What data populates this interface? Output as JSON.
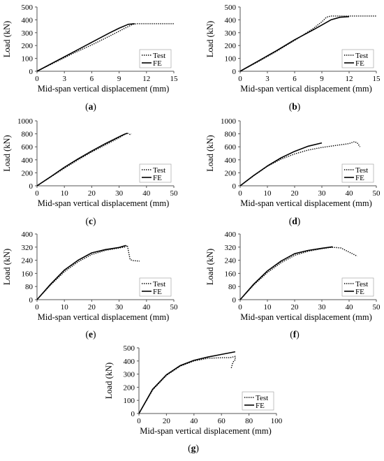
{
  "chart_data": [
    {
      "type": "line",
      "panel_label": "(a)",
      "xlabel": "Mid-span vertical displacement (mm)",
      "ylabel": "Load (kN)",
      "xlim": [
        0,
        15
      ],
      "ylim": [
        0,
        500
      ],
      "xticks": [
        0,
        3,
        6,
        9,
        12,
        15
      ],
      "yticks": [
        0,
        100,
        200,
        300,
        400,
        500
      ],
      "legend": "bottom-right",
      "series": [
        {
          "name": "Test",
          "style": "dotted",
          "x": [
            0,
            2,
            4,
            6,
            8,
            9.5,
            10.5,
            11,
            13,
            15
          ],
          "y": [
            0,
            70,
            140,
            205,
            275,
            330,
            365,
            370,
            370,
            370
          ]
        },
        {
          "name": "FE",
          "style": "solid",
          "x": [
            0,
            2,
            4,
            6,
            8,
            9,
            10,
            10.7
          ],
          "y": [
            0,
            75,
            150,
            225,
            300,
            335,
            365,
            370
          ]
        }
      ]
    },
    {
      "type": "line",
      "panel_label": "(b)",
      "xlabel": "Mid-span vertical displacement (mm)",
      "ylabel": "Load (kN)",
      "xlim": [
        0,
        15
      ],
      "ylim": [
        0,
        500
      ],
      "xticks": [
        0,
        3,
        6,
        9,
        12,
        15
      ],
      "yticks": [
        0,
        100,
        200,
        300,
        400,
        500
      ],
      "legend": "bottom-right",
      "series": [
        {
          "name": "Test",
          "style": "dotted",
          "x": [
            0,
            2,
            4,
            6,
            8,
            9,
            9.5,
            10,
            12,
            15
          ],
          "y": [
            0,
            75,
            155,
            240,
            330,
            385,
            420,
            430,
            430,
            430
          ]
        },
        {
          "name": "FE",
          "style": "solid",
          "x": [
            0,
            2,
            4,
            6,
            8,
            9,
            10,
            11,
            12
          ],
          "y": [
            0,
            80,
            160,
            245,
            320,
            360,
            400,
            420,
            425
          ]
        }
      ]
    },
    {
      "type": "line",
      "panel_label": "(c)",
      "xlabel": "Mid-span vertical displacement (mm)",
      "ylabel": "Load (kN)",
      "xlim": [
        0,
        50
      ],
      "ylim": [
        0,
        1000
      ],
      "xticks": [
        0,
        10,
        20,
        30,
        40,
        50
      ],
      "yticks": [
        0,
        200,
        400,
        600,
        800,
        1000
      ],
      "legend": "bottom-right",
      "series": [
        {
          "name": "Test",
          "style": "dotted",
          "x": [
            0,
            5,
            10,
            15,
            20,
            25,
            30,
            32,
            33,
            34,
            34.5
          ],
          "y": [
            0,
            135,
            270,
            400,
            520,
            630,
            740,
            790,
            810,
            790,
            800
          ]
        },
        {
          "name": "FE",
          "style": "solid",
          "x": [
            0,
            5,
            10,
            15,
            20,
            25,
            30,
            32,
            33
          ],
          "y": [
            0,
            140,
            285,
            415,
            535,
            650,
            755,
            795,
            810
          ]
        }
      ]
    },
    {
      "type": "line",
      "panel_label": "(d)",
      "xlabel": "Mid-span vertical displacement (mm)",
      "ylabel": "Load (kN)",
      "xlim": [
        0,
        50
      ],
      "ylim": [
        0,
        1000
      ],
      "xticks": [
        0,
        10,
        20,
        30,
        40,
        50
      ],
      "yticks": [
        0,
        200,
        400,
        600,
        800,
        1000
      ],
      "legend": "bottom-right",
      "series": [
        {
          "name": "Test",
          "style": "dotted",
          "x": [
            0,
            5,
            10,
            15,
            20,
            25,
            30,
            35,
            40,
            42,
            43,
            44
          ],
          "y": [
            0,
            155,
            300,
            410,
            490,
            550,
            590,
            620,
            650,
            680,
            660,
            600
          ]
        },
        {
          "name": "FE",
          "style": "solid",
          "x": [
            0,
            5,
            10,
            15,
            20,
            25,
            30
          ],
          "y": [
            0,
            160,
            305,
            430,
            530,
            610,
            660
          ]
        }
      ]
    },
    {
      "type": "line",
      "panel_label": "(e)",
      "xlabel": "Mid-span vertical displacement (mm)",
      "ylabel": "Load (kN)",
      "xlim": [
        0,
        50
      ],
      "ylim": [
        0,
        400
      ],
      "xticks": [
        0,
        10,
        20,
        30,
        40,
        50
      ],
      "yticks": [
        0,
        80,
        160,
        240,
        320,
        400
      ],
      "legend": "bottom-right",
      "series": [
        {
          "name": "Test",
          "style": "dotted",
          "x": [
            0,
            5,
            10,
            15,
            20,
            25,
            30,
            32,
            33,
            34,
            35,
            37.5
          ],
          "y": [
            0,
            90,
            170,
            230,
            275,
            300,
            315,
            320,
            330,
            245,
            238,
            235
          ]
        },
        {
          "name": "FE",
          "style": "solid",
          "x": [
            0,
            5,
            10,
            15,
            20,
            25,
            30,
            32.5
          ],
          "y": [
            0,
            95,
            180,
            240,
            285,
            305,
            318,
            330
          ]
        }
      ]
    },
    {
      "type": "line",
      "panel_label": "(f)",
      "xlabel": "Mid-span vertical displacement (mm)",
      "ylabel": "Load (kN)",
      "xlim": [
        0,
        50
      ],
      "ylim": [
        0,
        400
      ],
      "xticks": [
        0,
        10,
        20,
        30,
        40,
        50
      ],
      "yticks": [
        0,
        80,
        160,
        240,
        320,
        400
      ],
      "legend": "bottom-right",
      "series": [
        {
          "name": "Test",
          "style": "dotted",
          "x": [
            0,
            5,
            10,
            15,
            20,
            25,
            30,
            33,
            35,
            37,
            40,
            43
          ],
          "y": [
            0,
            90,
            165,
            225,
            270,
            295,
            310,
            318,
            318,
            315,
            290,
            265
          ]
        },
        {
          "name": "FE",
          "style": "solid",
          "x": [
            0,
            5,
            10,
            15,
            20,
            25,
            30,
            34
          ],
          "y": [
            0,
            95,
            175,
            235,
            280,
            300,
            313,
            322
          ]
        }
      ]
    },
    {
      "type": "line",
      "panel_label": "(g)",
      "xlabel": "Mid-span vertical displacement (mm)",
      "ylabel": "Load (kN)",
      "xlim": [
        0,
        100
      ],
      "ylim": [
        0,
        500
      ],
      "xticks": [
        0,
        20,
        40,
        60,
        80,
        100
      ],
      "yticks": [
        0,
        100,
        200,
        300,
        400,
        500
      ],
      "legend": "bottom-right",
      "series": [
        {
          "name": "Test",
          "style": "dotted",
          "x": [
            0,
            10,
            20,
            30,
            40,
            50,
            60,
            66,
            68,
            70,
            70,
            69,
            68,
            67
          ],
          "y": [
            0,
            180,
            290,
            360,
            400,
            420,
            425,
            425,
            430,
            435,
            410,
            400,
            380,
            340
          ]
        },
        {
          "name": "FE",
          "style": "solid",
          "x": [
            0,
            10,
            20,
            30,
            40,
            50,
            60,
            70
          ],
          "y": [
            0,
            185,
            295,
            365,
            405,
            430,
            450,
            470
          ]
        }
      ]
    }
  ]
}
